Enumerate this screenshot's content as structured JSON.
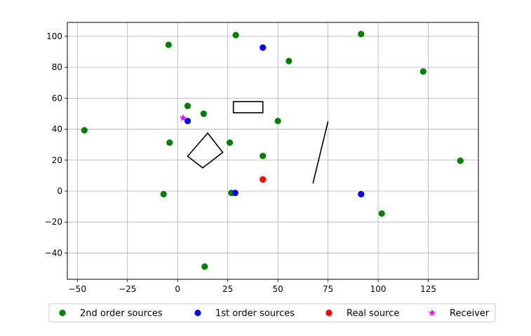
{
  "chart_data": {
    "type": "scatter",
    "grid": true,
    "xlim": [
      -55,
      150
    ],
    "ylim": [
      -57,
      109
    ],
    "x_ticks": [
      -50,
      -25,
      0,
      25,
      50,
      75,
      100,
      125
    ],
    "y_ticks": [
      -40,
      -20,
      0,
      20,
      40,
      60,
      80,
      100
    ],
    "legend_position": "bottom-center",
    "series": [
      {
        "name": "2nd order sources",
        "color": "#008000",
        "marker": "circle",
        "points": [
          {
            "x": -46.5,
            "y": 39.3
          },
          {
            "x": -4.5,
            "y": 94.5
          },
          {
            "x": 29,
            "y": 100.8
          },
          {
            "x": 55.5,
            "y": 84
          },
          {
            "x": 91.5,
            "y": 101.5
          },
          {
            "x": 122.5,
            "y": 77.3
          },
          {
            "x": 5,
            "y": 55
          },
          {
            "x": 13,
            "y": 50
          },
          {
            "x": 50,
            "y": 45.3
          },
          {
            "x": -4,
            "y": 31.3
          },
          {
            "x": 26,
            "y": 31.3
          },
          {
            "x": 42.5,
            "y": 22.7
          },
          {
            "x": 141,
            "y": 19.6
          },
          {
            "x": -7,
            "y": -2
          },
          {
            "x": 26.8,
            "y": -1.2
          },
          {
            "x": 101.8,
            "y": -14.5
          },
          {
            "x": 13.5,
            "y": -48.8
          }
        ]
      },
      {
        "name": "1st order sources",
        "color": "#0000ff",
        "marker": "circle",
        "points": [
          {
            "x": 42.5,
            "y": 92.7
          },
          {
            "x": 5,
            "y": 45.3
          },
          {
            "x": 28.7,
            "y": -1.2
          },
          {
            "x": 91.5,
            "y": -2
          }
        ]
      },
      {
        "name": "Real source",
        "color": "#ff0000",
        "marker": "circle",
        "points": [
          {
            "x": 42.5,
            "y": 7.5
          }
        ]
      },
      {
        "name": "Receiver",
        "color": "#ff00ff",
        "marker": "star",
        "points": [
          {
            "x": 2.7,
            "y": 47.3
          }
        ]
      }
    ],
    "shapes": [
      {
        "kind": "polygon",
        "color": "#000000",
        "points": [
          [
            27.8,
            50.6
          ],
          [
            42.5,
            50.6
          ],
          [
            42.5,
            57.8
          ],
          [
            27.8,
            57.8
          ]
        ]
      },
      {
        "kind": "polygon",
        "color": "#000000",
        "points": [
          [
            5,
            22.5
          ],
          [
            15,
            37.5
          ],
          [
            22.5,
            25
          ],
          [
            12.5,
            15
          ]
        ]
      },
      {
        "kind": "line",
        "color": "#000000",
        "points": [
          [
            67.5,
            5
          ],
          [
            75,
            45
          ]
        ]
      }
    ]
  }
}
